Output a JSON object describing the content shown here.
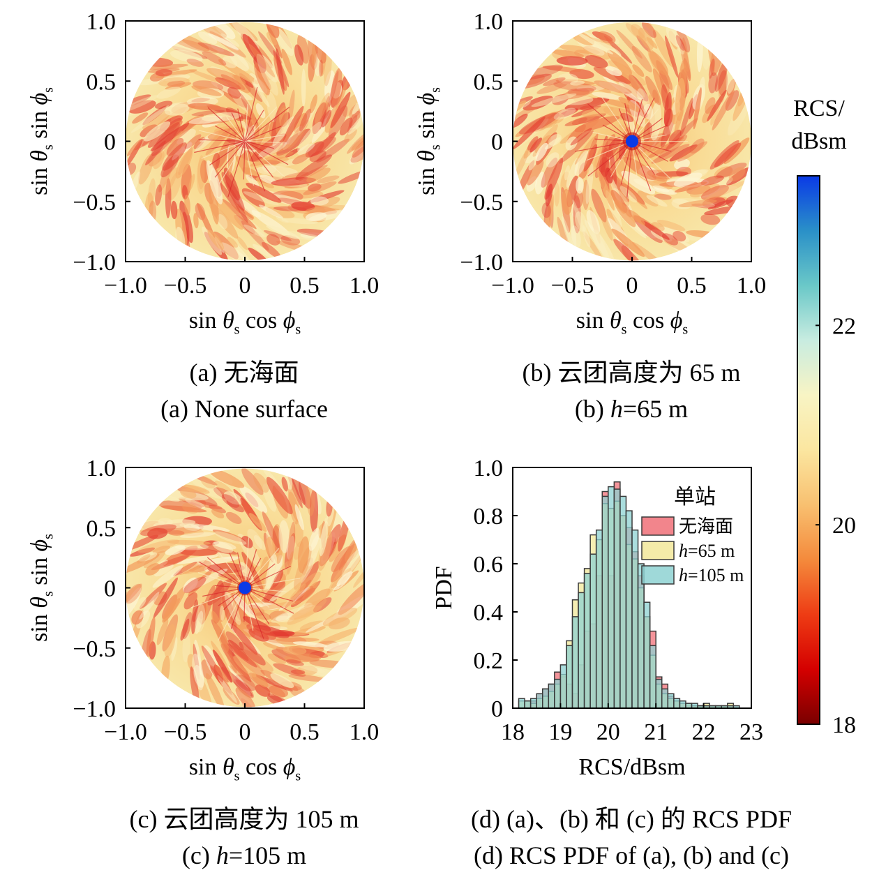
{
  "captions": {
    "a": {
      "zh": "(a) 无海面",
      "en": "(a) None surface"
    },
    "b": {
      "zh": "(b) 云团高度为 65 m",
      "en_prefix": "(b) ",
      "en_var": "h",
      "en_suffix": "=65 m"
    },
    "c": {
      "zh": "(c) 云团高度为 105 m",
      "en_prefix": "(c) ",
      "en_var": "h",
      "en_suffix": "=105 m"
    },
    "d": {
      "zh": "(d) (a)、(b) 和 (c) 的 RCS PDF",
      "en": "(d) RCS PDF of (a), (b) and (c)"
    }
  },
  "polar_axes": {
    "xlabel": {
      "prefix": "sin ",
      "theta": "θ",
      "sub1": "s",
      "mid": "cos ",
      "phi": "ϕ",
      "sub2": "s"
    },
    "ylabel": {
      "prefix": "sin ",
      "theta": "θ",
      "sub1": "s",
      "mid": "sin ",
      "phi": "ϕ",
      "sub2": "s"
    },
    "ticks": [
      "−1.0",
      "−0.5",
      "0",
      "0.5",
      "1.0"
    ],
    "tick_values": [
      -1.0,
      -0.5,
      0,
      0.5,
      1.0
    ]
  },
  "colorbar": {
    "title_line1": "RCS/",
    "title_line2": "dBsm",
    "ticks": [
      {
        "label": "18",
        "value": 18
      },
      {
        "label": "20",
        "value": 20
      },
      {
        "label": "22",
        "value": 22
      }
    ],
    "range": [
      18,
      23.5
    ],
    "colormap": [
      "#7a0000",
      "#d40000",
      "#ee3c14",
      "#f48a3c",
      "#f8c070",
      "#fbe6a0",
      "#f8f4c4",
      "#c8ece0",
      "#6ac8c8",
      "#2a90c8",
      "#0a3ae6"
    ]
  },
  "chart_data": [
    {
      "type": "heatmap",
      "panel": "a",
      "domain": "unit disk",
      "xlim": [
        -1,
        1
      ],
      "ylim": [
        -1,
        1
      ],
      "center_spot": false,
      "typical_rcs_dbsm": [
        19,
        21
      ]
    },
    {
      "type": "heatmap",
      "panel": "b",
      "domain": "unit disk",
      "xlim": [
        -1,
        1
      ],
      "ylim": [
        -1,
        1
      ],
      "center_spot": true,
      "center_spot_color": "#0a3ae6",
      "typical_rcs_dbsm": [
        19,
        21
      ]
    },
    {
      "type": "heatmap",
      "panel": "c",
      "domain": "unit disk",
      "xlim": [
        -1,
        1
      ],
      "ylim": [
        -1,
        1
      ],
      "center_spot": true,
      "center_spot_color": "#0a3ae6",
      "typical_rcs_dbsm": [
        19,
        21
      ]
    },
    {
      "type": "bar",
      "panel": "d",
      "xlabel": "RCS/dBsm",
      "ylabel": "PDF",
      "xlim": [
        18,
        23
      ],
      "ylim": [
        0,
        1.0
      ],
      "xticks": [
        "18",
        "19",
        "20",
        "21",
        "22",
        "23"
      ],
      "yticks": [
        "0",
        "0.2",
        "0.4",
        "0.6",
        "0.8",
        "1.0"
      ],
      "legend_title": "单站",
      "legend_position": "top-right",
      "bin_width": 0.125,
      "bin_start": 18.0,
      "series": [
        {
          "name": "无海面",
          "name_prefix": "",
          "name_var": "",
          "name_suffix": "无海面",
          "color": "#f07078",
          "values": [
            0,
            0,
            0.03,
            0.03,
            0.06,
            0.08,
            0.1,
            0.15,
            0.13,
            0.1,
            0.06,
            0.18,
            0.32,
            0.35,
            0.55,
            0.9,
            0.55,
            0.94,
            0.8,
            0.75,
            0.65,
            0.55,
            0.38,
            0.32,
            0.13,
            0.1,
            0.05,
            0.03,
            0.02,
            0.01,
            0.01,
            0,
            0.01,
            0,
            0,
            0,
            0,
            0,
            0,
            0
          ]
        },
        {
          "name": "h=65 m",
          "name_prefix": "",
          "name_var": "h",
          "name_suffix": "=65 m",
          "color": "#f2e89a",
          "values": [
            0,
            0.03,
            0.03,
            0.02,
            0.04,
            0.05,
            0.07,
            0.1,
            0.14,
            0.28,
            0.45,
            0.52,
            0.58,
            0.72,
            0.7,
            0.85,
            0.83,
            0.86,
            0.8,
            0.68,
            0.62,
            0.5,
            0.38,
            0.22,
            0.1,
            0.06,
            0.04,
            0.03,
            0.02,
            0.02,
            0.01,
            0.01,
            0.02,
            0.01,
            0.01,
            0.01,
            0.02,
            0,
            0,
            0
          ]
        },
        {
          "name": "h=105 m",
          "name_prefix": "",
          "name_var": "h",
          "name_suffix": "=105 m",
          "color": "#8ed2d2",
          "values": [
            0,
            0.04,
            0.03,
            0.04,
            0.06,
            0.08,
            0.1,
            0.12,
            0.18,
            0.26,
            0.38,
            0.48,
            0.56,
            0.64,
            0.74,
            0.88,
            0.92,
            0.91,
            0.88,
            0.82,
            0.74,
            0.6,
            0.44,
            0.26,
            0.12,
            0.08,
            0.06,
            0.04,
            0.03,
            0.02,
            0.02,
            0.01,
            0.01,
            0.01,
            0.01,
            0.01,
            0.01,
            0.01,
            0,
            0
          ]
        }
      ]
    }
  ]
}
